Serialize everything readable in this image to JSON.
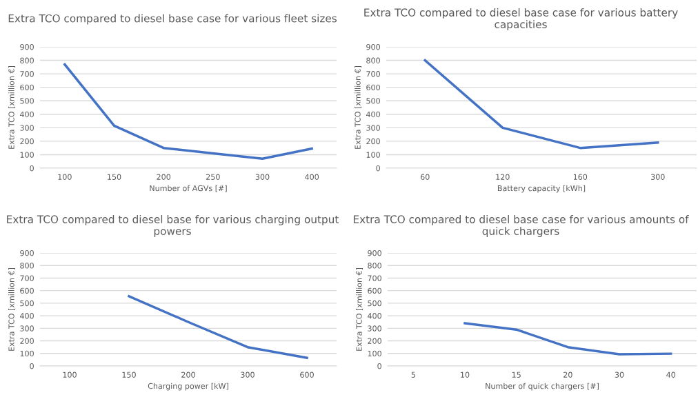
{
  "chart_data": [
    {
      "type": "line",
      "title": "Extra TCO compared to diesel base case for various fleet sizes",
      "xlabel": "Number of AGVs [#]",
      "ylabel": "Extra TCO [xmillion €]",
      "categories": [
        "100",
        "150",
        "200",
        "250",
        "300",
        "400"
      ],
      "series": [
        {
          "color": "#4472c4",
          "values": [
            770,
            315,
            150,
            110,
            70,
            145
          ]
        }
      ],
      "ylim": [
        0,
        900
      ],
      "yticks": [
        0,
        100,
        200,
        300,
        400,
        500,
        600,
        700,
        800,
        900
      ],
      "grid": "y",
      "legend": false,
      "marker": "none"
    },
    {
      "type": "line",
      "title": "Extra TCO compared to diesel base case for various battery capacities",
      "xlabel": "Battery capacity [kWh]",
      "ylabel": "Extra TCO [xmillion €]",
      "categories": [
        "60",
        "120",
        "160",
        "300"
      ],
      "series": [
        {
          "color": "#4472c4",
          "values": [
            800,
            300,
            150,
            190
          ]
        }
      ],
      "ylim": [
        0,
        900
      ],
      "yticks": [
        0,
        100,
        200,
        300,
        400,
        500,
        600,
        700,
        800,
        900
      ],
      "grid": "y",
      "legend": false,
      "marker": "none"
    },
    {
      "type": "line",
      "title": "Extra TCO compared to diesel base for various charging output powers",
      "xlabel": "Charging power [kW]",
      "ylabel": "Extra TCO [xmillion €]",
      "categories": [
        "100",
        "150",
        "200",
        "300",
        "600"
      ],
      "series": [
        {
          "color": "#4472c4",
          "values": [
            null,
            555,
            350,
            150,
            65
          ]
        }
      ],
      "ylim": [
        0,
        900
      ],
      "yticks": [
        0,
        100,
        200,
        300,
        400,
        500,
        600,
        700,
        800,
        900
      ],
      "grid": "y",
      "legend": false,
      "marker": "none"
    },
    {
      "type": "line",
      "title": "Extra TCO compared to diesel base case for various amounts of quick chargers",
      "xlabel": "Number of quick chargers [#]",
      "ylabel": "Extra TCO [xmillion €]",
      "categories": [
        "5",
        "10",
        "15",
        "20",
        "30",
        "40"
      ],
      "series": [
        {
          "color": "#4472c4",
          "values": [
            null,
            340,
            290,
            150,
            93,
            98
          ]
        }
      ],
      "ylim": [
        0,
        900
      ],
      "yticks": [
        0,
        100,
        200,
        300,
        400,
        500,
        600,
        700,
        800,
        900
      ],
      "grid": "y",
      "legend": false,
      "marker": "none"
    }
  ]
}
